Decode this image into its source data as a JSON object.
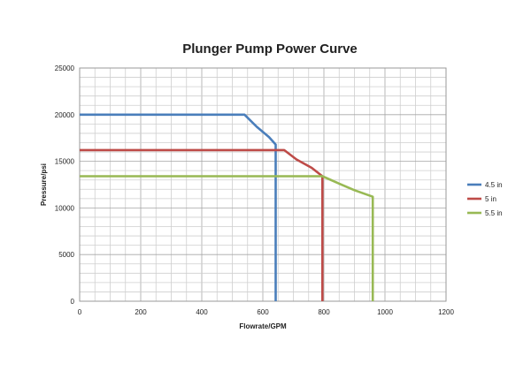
{
  "chart_data": {
    "type": "line",
    "title": "Plunger Pump Power Curve",
    "xlabel": "Flowrate/GPM",
    "ylabel": "Pressure/psi",
    "xlim": [
      0,
      1200
    ],
    "ylim": [
      0,
      25000
    ],
    "xticks": [
      "0",
      "200",
      "400",
      "600",
      "800",
      "1000",
      "1200"
    ],
    "yticks": [
      "0",
      "5000",
      "10000",
      "15000",
      "20000",
      "25000"
    ],
    "grid": true,
    "legend_position": "right",
    "series": [
      {
        "name": "4.5 in",
        "color": "#4a7ebb",
        "points": [
          [
            0,
            20000
          ],
          [
            540,
            20000
          ],
          [
            580,
            18700
          ],
          [
            620,
            17600
          ],
          [
            642,
            16800
          ],
          [
            642,
            0
          ]
        ]
      },
      {
        "name": "5 in",
        "color": "#be4b48",
        "points": [
          [
            0,
            16200
          ],
          [
            670,
            16200
          ],
          [
            710,
            15200
          ],
          [
            760,
            14300
          ],
          [
            795,
            13400
          ],
          [
            795,
            0
          ]
        ]
      },
      {
        "name": "5.5 in",
        "color": "#98b954",
        "points": [
          [
            0,
            13400
          ],
          [
            795,
            13400
          ],
          [
            850,
            12600
          ],
          [
            900,
            11900
          ],
          [
            960,
            11200
          ],
          [
            960,
            0
          ]
        ]
      }
    ]
  }
}
